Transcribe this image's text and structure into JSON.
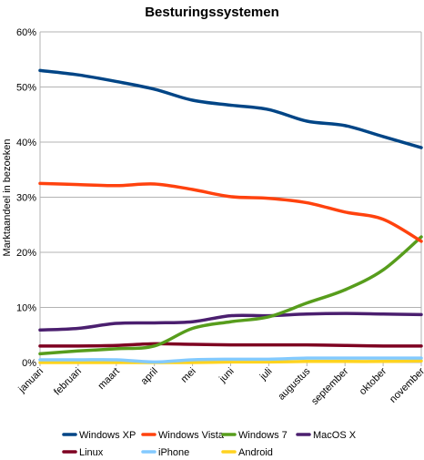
{
  "chart_data": {
    "type": "line",
    "title": "Besturingssystemen",
    "xlabel": "",
    "ylabel": "Marktaandeel in bezoeken",
    "ylim": [
      0,
      60
    ],
    "y_ticks": [
      "0%",
      "10%",
      "20%",
      "30%",
      "40%",
      "50%",
      "60%"
    ],
    "y_tick_values": [
      0,
      10,
      20,
      30,
      40,
      50,
      60
    ],
    "grid": true,
    "legend_position": "bottom",
    "categories": [
      "januari",
      "februari",
      "maart",
      "april",
      "mei",
      "juni",
      "juli",
      "augustus",
      "september",
      "oktober",
      "november"
    ],
    "series": [
      {
        "name": "Windows XP",
        "color": "#004586",
        "values": [
          53,
          52.2,
          51,
          49.6,
          47.6,
          46.7,
          45.9,
          43.8,
          43.0,
          41.0,
          39.0
        ]
      },
      {
        "name": "Windows Vista",
        "color": "#ff420e",
        "values": [
          32.5,
          32.3,
          32.1,
          32.4,
          31.4,
          30.1,
          29.8,
          29.0,
          27.3,
          26.0,
          22.0
        ]
      },
      {
        "name": "Windows 7",
        "color": "#579d1c",
        "values": [
          1.6,
          2.1,
          2.5,
          3.0,
          6.2,
          7.4,
          8.3,
          10.8,
          13.2,
          16.8,
          22.8
        ]
      },
      {
        "name": "MacOS X",
        "color": "#4b1f6f",
        "values": [
          5.9,
          6.2,
          7.1,
          7.2,
          7.4,
          8.5,
          8.5,
          8.8,
          8.9,
          8.8,
          8.7
        ]
      },
      {
        "name": "Linux",
        "color": "#7e0021",
        "values": [
          3.0,
          3.0,
          3.1,
          3.4,
          3.3,
          3.2,
          3.2,
          3.2,
          3.1,
          3.0,
          3.0
        ]
      },
      {
        "name": "iPhone",
        "color": "#83caff",
        "values": [
          0.5,
          0.5,
          0.5,
          0.1,
          0.5,
          0.6,
          0.6,
          0.8,
          0.8,
          0.8,
          0.8
        ]
      },
      {
        "name": "Android",
        "color": "#ffd320",
        "values": [
          0.0,
          0.0,
          0.0,
          0.0,
          0.0,
          0.1,
          0.1,
          0.2,
          0.2,
          0.2,
          0.3
        ]
      }
    ]
  }
}
